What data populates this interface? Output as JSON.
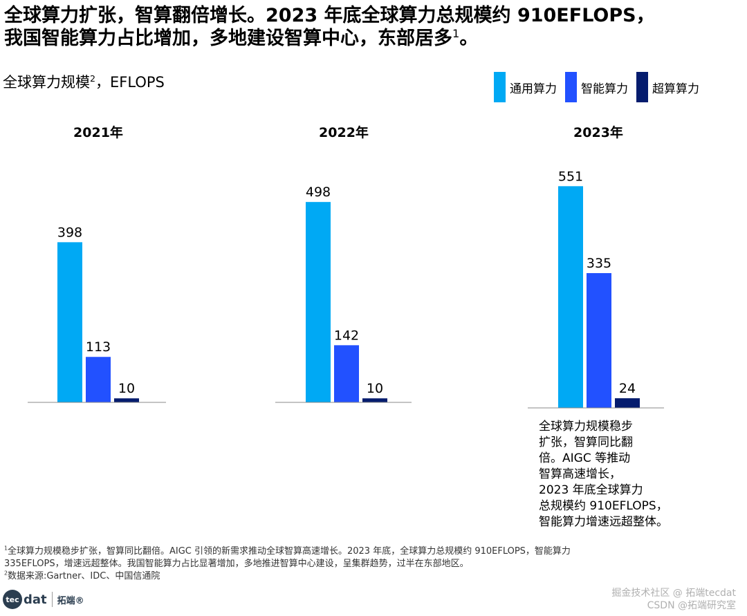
{
  "headline": {
    "line1": "全球算力扩张，智算翻倍增长。2023 年底全球算力总规模约 910EFLOPS，",
    "line2": "我国智能算力占比增加，多地建设智算中心，东部居多",
    "line2_sup": "1",
    "line2_end": "。"
  },
  "chart_title": {
    "text": "全球算力规模",
    "sup": "2",
    "unit": "，EFLOPS"
  },
  "legend": [
    {
      "label": "通用算力",
      "color": "#00a9f4"
    },
    {
      "label": "智能算力",
      "color": "#2251ff"
    },
    {
      "label": "超算算力",
      "color": "#051c6e"
    }
  ],
  "chart_data": {
    "type": "bar",
    "title": "全球算力规模，EFLOPS",
    "groups": [
      "2021年",
      "2022年",
      "2023年"
    ],
    "series": [
      {
        "name": "通用算力",
        "values": [
          398,
          498,
          551
        ],
        "color": "#00a9f4"
      },
      {
        "name": "智能算力",
        "values": [
          113,
          142,
          335
        ],
        "color": "#2251ff"
      },
      {
        "name": "超算算力",
        "values": [
          10,
          10,
          24
        ],
        "color": "#051c6e"
      }
    ],
    "ylim": [
      0,
      551
    ],
    "legend": "top-right",
    "grid": false
  },
  "note": [
    "全球算力规模稳步",
    "扩张，智算同比翻",
    "倍。AIGC 等推动",
    "智算高速增长，",
    "2023 年底全球算力",
    "总规模约 910EFLOPS，",
    "智能算力增速远超整体。"
  ],
  "footnotes": {
    "f1_sup": "1",
    "f1_line1": "全球算力规模稳步扩张，智算同比翻倍。AIGC 引领的新需求推动全球智算高速增长。2023 年底，全球算力总规模约 910EFLOPS，智能算力",
    "f1_line2": "335EFLOPS，增速远超整体。我国智能算力占比显著增加，多地推进智算中心建设，呈集群趋势，过半在东部地区。",
    "f2_sup": "2",
    "f2_text": "数据来源:Gartner、IDC、中国信通院"
  },
  "logo": {
    "circle": "tec",
    "word": "dat",
    "cn": "拓端®"
  },
  "watermark": {
    "line1": "掘金技术社区 @ 拓端tecdat",
    "line2": "CSDN @拓端研究室"
  }
}
